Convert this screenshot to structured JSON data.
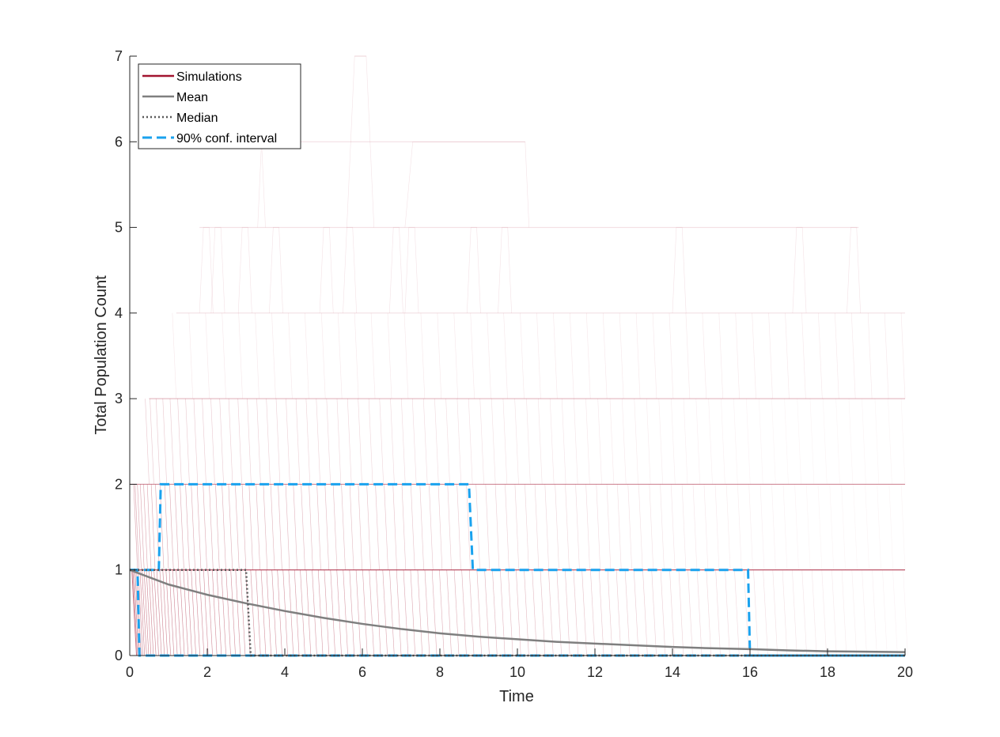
{
  "chart_data": {
    "type": "line",
    "xlabel": "Time",
    "ylabel": "Total Population Count",
    "xlim": [
      0,
      20
    ],
    "ylim": [
      0,
      7
    ],
    "xticks": [
      0,
      2,
      4,
      6,
      8,
      10,
      12,
      14,
      16,
      18,
      20
    ],
    "yticks": [
      0,
      1,
      2,
      3,
      4,
      5,
      6,
      7
    ],
    "grid": false,
    "legend_position": "top-left",
    "colors": {
      "simulations": "#a2142f",
      "mean": "#7f7f7f",
      "median": "#595959",
      "conf_interval": "#1aa2ee"
    },
    "legend": [
      {
        "label": "Simulations",
        "style": "solid"
      },
      {
        "label": "Mean",
        "style": "solid"
      },
      {
        "label": "Median",
        "style": "dotted"
      },
      {
        "label": "90% conf. interval",
        "style": "dashed"
      }
    ],
    "series": [
      {
        "name": "Mean",
        "x": [
          0,
          1,
          2,
          3,
          4,
          5,
          6,
          7,
          8,
          9,
          10,
          11,
          12,
          13,
          14,
          15,
          16,
          17,
          18,
          19,
          20
        ],
        "y": [
          1.0,
          0.83,
          0.71,
          0.61,
          0.52,
          0.44,
          0.37,
          0.31,
          0.26,
          0.22,
          0.19,
          0.16,
          0.14,
          0.12,
          0.1,
          0.085,
          0.075,
          0.06,
          0.05,
          0.045,
          0.04
        ]
      },
      {
        "name": "Median",
        "x": [
          0,
          0.15,
          3.0,
          3.05,
          3.12,
          20
        ],
        "y": [
          1,
          1,
          1,
          0.6,
          0,
          0
        ]
      },
      {
        "name": "90% conf. interval",
        "bounds": [
          {
            "x": [
              0,
              0.75,
              0.8,
              8.75,
              8.85,
              15.95,
              16.0,
              20
            ],
            "y": [
              1,
              1,
              2,
              2,
              1,
              1,
              0,
              0
            ]
          },
          {
            "x": [
              0,
              0.2,
              0.25,
              20
            ],
            "y": [
              1,
              1,
              0,
              0
            ]
          }
        ]
      },
      {
        "name": "Simulations",
        "note_levels": [
          {
            "level": 1,
            "extent": [
              0,
              20
            ]
          },
          {
            "level": 2,
            "extent": [
              0,
              20
            ]
          },
          {
            "level": 3,
            "extent": [
              0.5,
              20
            ]
          },
          {
            "level": 4,
            "extent": [
              1.2,
              20
            ]
          },
          {
            "level": 5,
            "extent": [
              1.8,
              18.8
            ]
          },
          {
            "level": 6,
            "extent": [
              3.3,
              10.2
            ]
          },
          {
            "level": 7,
            "extent": [
              5.8,
              6.1
            ]
          }
        ]
      }
    ]
  }
}
